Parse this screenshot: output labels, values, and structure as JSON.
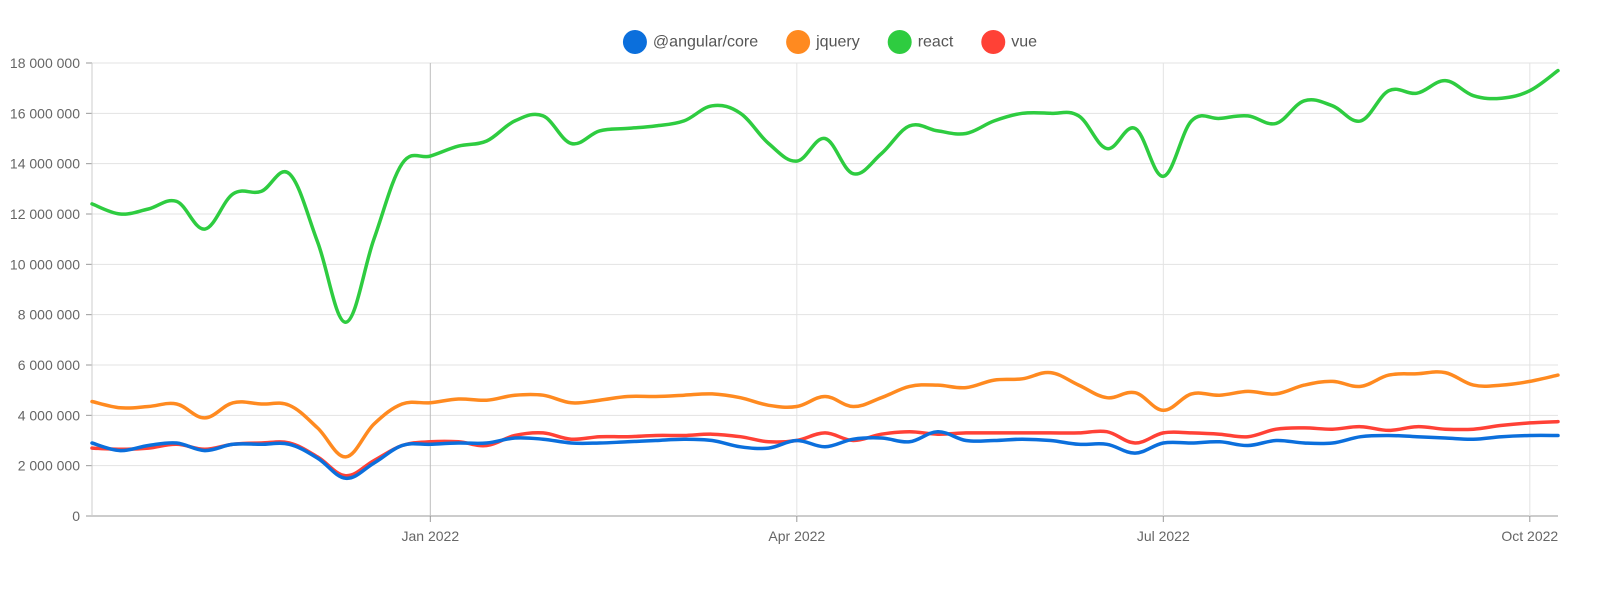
{
  "chart_data": {
    "type": "line",
    "title": "",
    "xlabel": "",
    "ylabel": "",
    "x_ticks": [
      {
        "label": "Jan 2022",
        "week": 12
      },
      {
        "label": "Apr 2022",
        "week": 25
      },
      {
        "label": "Jul 2022",
        "week": 38
      },
      {
        "label": "Oct 2022",
        "week": 51
      }
    ],
    "x_range": [
      0,
      52
    ],
    "ylim": [
      0,
      18000000
    ],
    "y_ticks": [
      {
        "value": 0,
        "label": "0"
      },
      {
        "value": 2000000,
        "label": "2 000 000"
      },
      {
        "value": 4000000,
        "label": "4 000 000"
      },
      {
        "value": 6000000,
        "label": "6 000 000"
      },
      {
        "value": 8000000,
        "label": "8 000 000"
      },
      {
        "value": 10000000,
        "label": "10 000 000"
      },
      {
        "value": 12000000,
        "label": "12 000 000"
      },
      {
        "value": 14000000,
        "label": "14 000 000"
      },
      {
        "value": 16000000,
        "label": "16 000 000"
      },
      {
        "value": 18000000,
        "label": "18 000 000"
      }
    ],
    "grid": true,
    "legend_position": "top-center",
    "x": [
      0,
      1,
      2,
      3,
      4,
      5,
      6,
      7,
      8,
      9,
      10,
      11,
      12,
      13,
      14,
      15,
      16,
      17,
      18,
      19,
      20,
      21,
      22,
      23,
      24,
      25,
      26,
      27,
      28,
      29,
      30,
      31,
      32,
      33,
      34,
      35,
      36,
      37,
      38,
      39,
      40,
      41,
      42,
      43,
      44,
      45,
      46,
      47,
      48,
      49,
      50,
      51,
      52
    ],
    "series": [
      {
        "name": "@angular/core",
        "color": "#0b6fdc",
        "values": [
          2900000,
          2600000,
          2800000,
          2900000,
          2600000,
          2850000,
          2850000,
          2850000,
          2300000,
          1500000,
          2100000,
          2800000,
          2850000,
          2900000,
          2900000,
          3100000,
          3050000,
          2900000,
          2900000,
          2950000,
          3000000,
          3050000,
          3000000,
          2750000,
          2700000,
          3000000,
          2750000,
          3050000,
          3100000,
          2950000,
          3350000,
          3000000,
          3000000,
          3050000,
          3000000,
          2850000,
          2850000,
          2500000,
          2900000,
          2900000,
          2950000,
          2800000,
          3000000,
          2900000,
          2900000,
          3150000,
          3200000,
          3150000,
          3100000,
          3050000,
          3150000,
          3200000,
          3200000
        ]
      },
      {
        "name": "jquery",
        "color": "#ff8a20",
        "values": [
          4550000,
          4300000,
          4350000,
          4450000,
          3900000,
          4500000,
          4450000,
          4400000,
          3500000,
          2350000,
          3650000,
          4450000,
          4500000,
          4650000,
          4600000,
          4800000,
          4800000,
          4500000,
          4600000,
          4750000,
          4750000,
          4800000,
          4850000,
          4700000,
          4400000,
          4350000,
          4750000,
          4350000,
          4700000,
          5150000,
          5200000,
          5100000,
          5400000,
          5450000,
          5700000,
          5200000,
          4700000,
          4900000,
          4200000,
          4850000,
          4800000,
          4950000,
          4850000,
          5200000,
          5350000,
          5150000,
          5600000,
          5650000,
          5700000,
          5200000,
          5200000,
          5350000,
          5600000
        ]
      },
      {
        "name": "react",
        "color": "#2ecc40",
        "values": [
          12400000,
          12000000,
          12200000,
          12500000,
          11400000,
          12800000,
          12900000,
          13600000,
          10900000,
          7700000,
          11000000,
          14000000,
          14300000,
          14700000,
          14900000,
          15700000,
          15900000,
          14800000,
          15300000,
          15400000,
          15500000,
          15700000,
          16300000,
          16000000,
          14800000,
          14100000,
          15000000,
          13600000,
          14400000,
          15500000,
          15300000,
          15200000,
          15700000,
          16000000,
          16000000,
          15900000,
          14600000,
          15400000,
          13500000,
          15700000,
          15800000,
          15900000,
          15600000,
          16500000,
          16300000,
          15700000,
          16900000,
          16800000,
          17300000,
          16700000,
          16600000,
          16900000,
          17700000
        ]
      },
      {
        "name": "vue",
        "color": "#ff4136",
        "values": [
          2700000,
          2650000,
          2700000,
          2850000,
          2650000,
          2850000,
          2900000,
          2900000,
          2350000,
          1600000,
          2200000,
          2800000,
          2950000,
          2950000,
          2800000,
          3200000,
          3300000,
          3050000,
          3150000,
          3150000,
          3200000,
          3200000,
          3250000,
          3150000,
          2950000,
          3000000,
          3300000,
          3000000,
          3250000,
          3350000,
          3250000,
          3300000,
          3300000,
          3300000,
          3300000,
          3300000,
          3350000,
          2900000,
          3300000,
          3300000,
          3250000,
          3150000,
          3450000,
          3500000,
          3450000,
          3550000,
          3400000,
          3550000,
          3450000,
          3450000,
          3600000,
          3700000,
          3750000
        ]
      }
    ]
  }
}
